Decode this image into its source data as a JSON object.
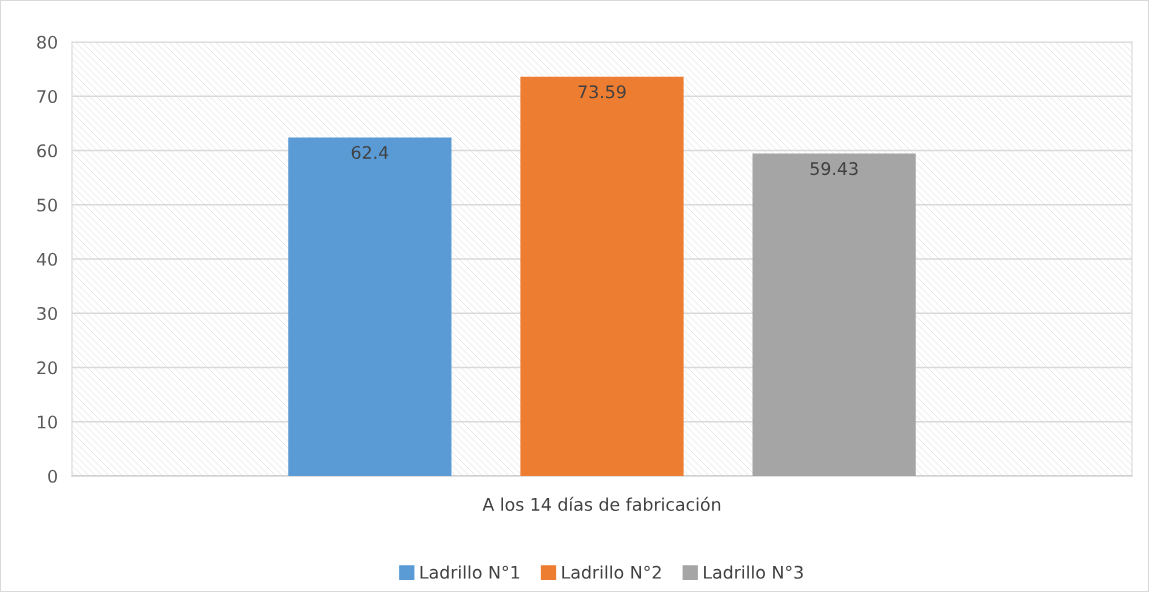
{
  "chart_data": {
    "type": "bar",
    "xlabel": "A los 14 días de fabricación",
    "categories": [
      null
    ],
    "series": [
      {
        "name": "Ladrillo N°1",
        "color": "#5b9bd5",
        "values": [
          62.4
        ]
      },
      {
        "name": "Ladrillo N°2",
        "color": "#ed7d31",
        "values": [
          73.59
        ]
      },
      {
        "name": "Ladrillo N°3",
        "color": "#a5a5a5",
        "values": [
          59.43
        ]
      }
    ],
    "ylim": [
      0,
      80
    ],
    "yticks": [
      0,
      10,
      20,
      30,
      40,
      50,
      60,
      70,
      80
    ],
    "grid": "y",
    "legend": "bottom",
    "data_labels": true
  }
}
